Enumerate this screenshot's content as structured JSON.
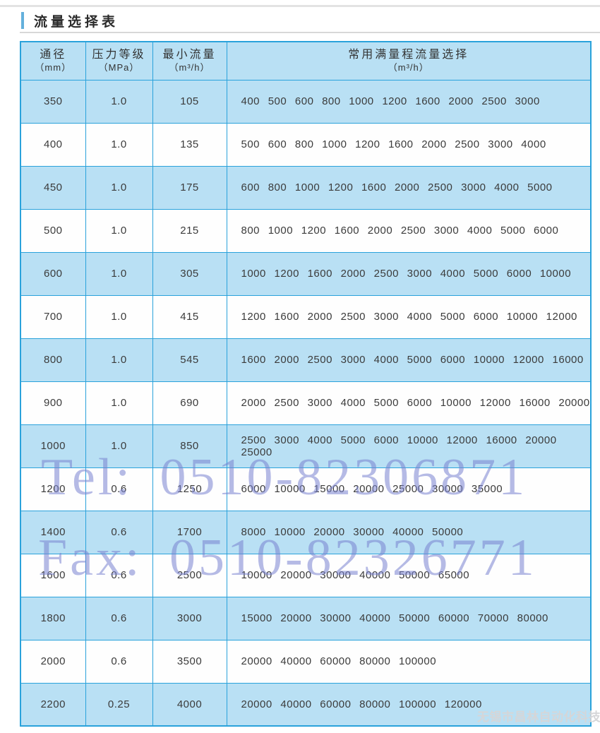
{
  "page": {
    "title": "流量选择表"
  },
  "table": {
    "headers": [
      {
        "line1": "通径",
        "line2": "（mm）"
      },
      {
        "line1": "压力等级",
        "line2": "（MPa）"
      },
      {
        "line1": "最小流量",
        "line2": "（m³/h）"
      },
      {
        "line1": "常用满量程流量选择",
        "line2": "（m³/h）"
      }
    ],
    "rows": [
      {
        "dn": "350",
        "pressure": "1.0",
        "min_flow": "105",
        "full_scale": "400 500 600 800 1000 1200 1600 2000 2500 3000"
      },
      {
        "dn": "400",
        "pressure": "1.0",
        "min_flow": "135",
        "full_scale": "500 600 800 1000 1200 1600 2000 2500 3000 4000"
      },
      {
        "dn": "450",
        "pressure": "1.0",
        "min_flow": "175",
        "full_scale": "600 800 1000 1200 1600 2000 2500 3000 4000 5000"
      },
      {
        "dn": "500",
        "pressure": "1.0",
        "min_flow": "215",
        "full_scale": "800 1000 1200 1600 2000 2500 3000 4000 5000 6000"
      },
      {
        "dn": "600",
        "pressure": "1.0",
        "min_flow": "305",
        "full_scale": "1000 1200 1600 2000 2500 3000 4000 5000 6000 10000"
      },
      {
        "dn": "700",
        "pressure": "1.0",
        "min_flow": "415",
        "full_scale": "1200 1600 2000 2500 3000 4000 5000 6000 10000 12000"
      },
      {
        "dn": "800",
        "pressure": "1.0",
        "min_flow": "545",
        "full_scale": "1600 2000 2500 3000 4000 5000 6000 10000 12000 16000"
      },
      {
        "dn": "900",
        "pressure": "1.0",
        "min_flow": "690",
        "full_scale": "2000 2500 3000 4000 5000 6000 10000 12000 16000 20000"
      },
      {
        "dn": "1000",
        "pressure": "1.0",
        "min_flow": "850",
        "full_scale": "2500 3000 4000 5000 6000 10000 12000 16000 20000 25000"
      },
      {
        "dn": "1200",
        "pressure": "0.6",
        "min_flow": "1250",
        "full_scale": "6000 10000 15000 20000 25000 30000 35000"
      },
      {
        "dn": "1400",
        "pressure": "0.6",
        "min_flow": "1700",
        "full_scale": "8000 10000 20000 30000 40000 50000"
      },
      {
        "dn": "1600",
        "pressure": "0.6",
        "min_flow": "2500",
        "full_scale": "10000 20000 30000 40000 50000 65000"
      },
      {
        "dn": "1800",
        "pressure": "0.6",
        "min_flow": "3000",
        "full_scale": "15000 20000 30000 40000 50000 60000 70000 80000"
      },
      {
        "dn": "2000",
        "pressure": "0.6",
        "min_flow": "3500",
        "full_scale": "20000 40000 60000 80000 100000"
      },
      {
        "dn": "2200",
        "pressure": "0.25",
        "min_flow": "4000",
        "full_scale": "20000 40000 60000 80000 100000 120000"
      }
    ]
  },
  "watermarks": {
    "tel": "Tel: 0510-82306871",
    "fax": "Fax: 0510-82326771",
    "company": "无锡市昌林自动化科技"
  },
  "colors": {
    "table_border": "#2aa2db",
    "row_blue": "#b9e0f4",
    "row_white": "#fefefe",
    "accent_bar": "#64b0dc",
    "watermark_blue": "#7882d0",
    "company_gray": "#d5d6d8",
    "text": "#3b3b3b"
  }
}
